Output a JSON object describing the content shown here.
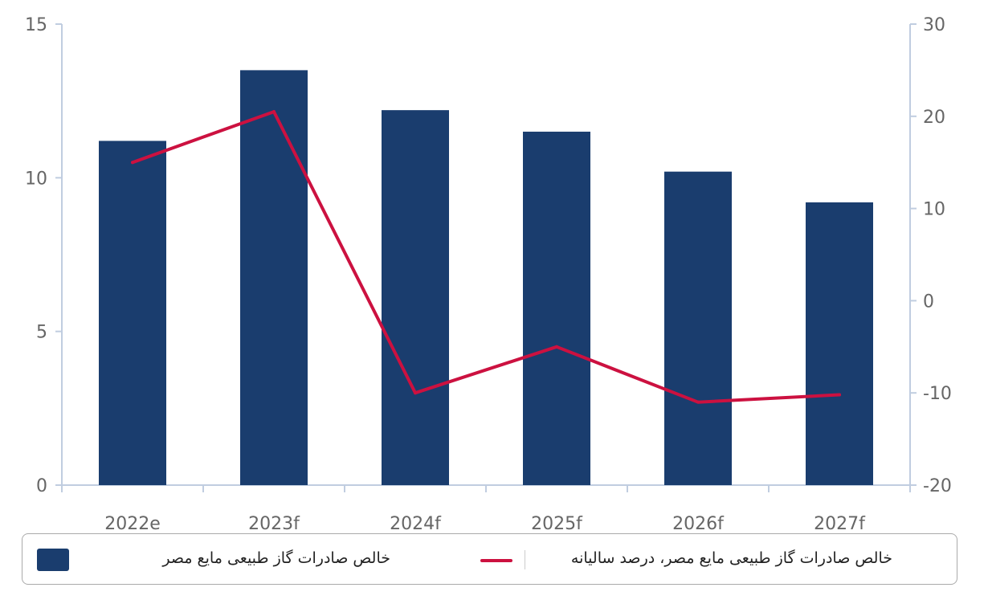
{
  "chart_data": {
    "type": "bar",
    "categories": [
      "2022e",
      "2023f",
      "2024f",
      "2025f",
      "2026f",
      "2027f"
    ],
    "series": [
      {
        "name": "خالص صادرات گاز طبیعی مایع  مصر",
        "type": "bar",
        "axis": "left",
        "values": [
          11.2,
          13.5,
          12.2,
          11.5,
          10.2,
          9.2
        ]
      },
      {
        "name": "خالص صادرات گاز طبیعی مایع  مصر، درصد سالیانه",
        "type": "line",
        "axis": "right",
        "values": [
          15,
          20.5,
          -10,
          -5,
          -11,
          -10.2
        ]
      }
    ],
    "y_left": {
      "min": 0,
      "max": 15,
      "ticks": [
        0,
        5,
        10,
        15
      ]
    },
    "y_right": {
      "min": -20,
      "max": 30,
      "ticks": [
        -20,
        -10,
        0,
        10,
        20,
        30
      ]
    },
    "colors": {
      "bar": "#1a3d6e",
      "line": "#cc1140",
      "axis": "#c0cde0",
      "tick_text": "#666666"
    },
    "grid": false,
    "legend_position": "bottom"
  }
}
